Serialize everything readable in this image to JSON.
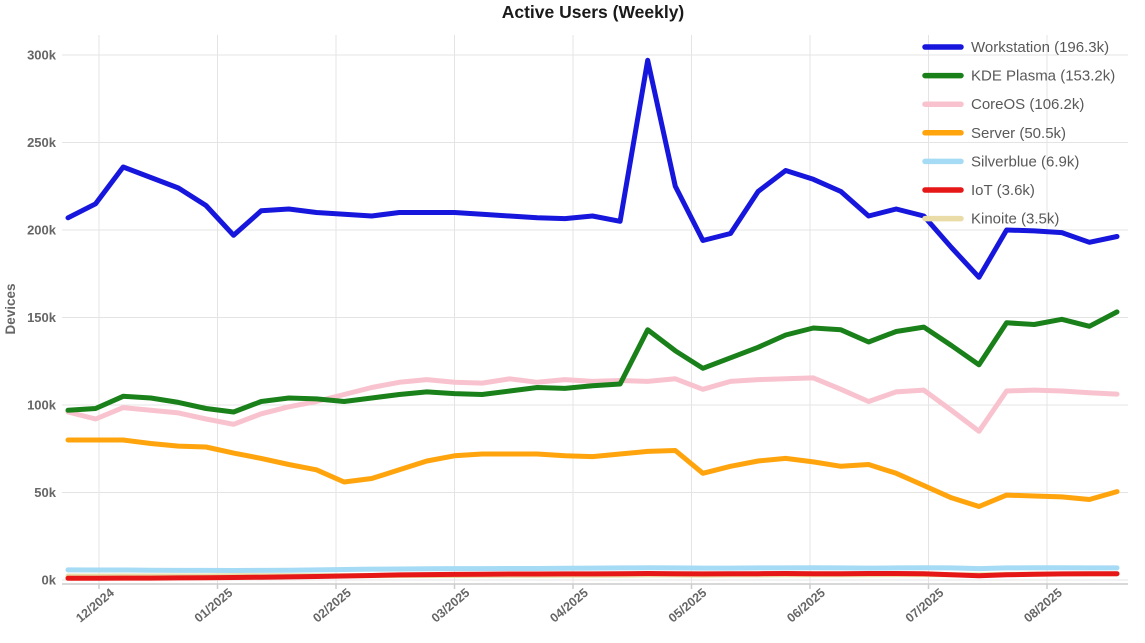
{
  "chart_data": {
    "type": "line",
    "title": "Active Users (Weekly)",
    "ylabel": "Devices",
    "xlabel": "",
    "grid": true,
    "legend_position": "top-right-inside",
    "ylim": [
      0,
      310
    ],
    "y_tick_values": [
      0,
      50,
      100,
      150,
      200,
      250,
      300
    ],
    "y_tick_labels": [
      "0k",
      "50k",
      "100k",
      "150k",
      "200k",
      "250k",
      "300k"
    ],
    "x_tick_labels": [
      "12/2024",
      "01/2025",
      "02/2025",
      "03/2025",
      "04/2025",
      "05/2025",
      "06/2025",
      "07/2025",
      "08/2025"
    ],
    "x_unit": "week",
    "n_points": 39,
    "series": [
      {
        "name": "Workstation",
        "legend": "Workstation (196.3k)",
        "latest": "196.3k",
        "color": "#1616dd",
        "values": [
          207,
          215,
          236,
          230,
          224,
          214,
          197,
          211,
          212,
          210,
          209,
          208,
          210,
          210,
          210,
          209,
          208,
          207,
          206.5,
          208,
          205,
          297,
          225,
          194,
          198,
          222,
          234,
          229,
          222,
          208,
          212,
          208,
          190,
          173,
          200,
          199.5,
          198.5,
          193,
          196.3
        ]
      },
      {
        "name": "KDE Plasma",
        "legend": "KDE Plasma (153.2k)",
        "latest": "153.2k",
        "color": "#1a801a",
        "values": [
          97,
          98,
          105,
          104,
          101.5,
          98,
          96,
          102,
          104,
          103.5,
          102,
          104,
          106,
          107.5,
          106.5,
          106,
          108,
          110,
          109.5,
          111,
          112,
          143,
          131,
          121,
          127,
          133,
          140,
          144,
          143,
          136,
          142,
          144.5,
          134,
          123,
          147,
          146,
          149,
          145,
          153.2
        ]
      },
      {
        "name": "CoreOS",
        "legend": "CoreOS (106.2k)",
        "latest": "106.2k",
        "color": "#f8c3ce",
        "values": [
          96,
          92,
          98.5,
          97,
          95.5,
          92,
          89,
          95,
          99,
          102,
          106,
          110,
          113,
          114.5,
          113,
          112.5,
          115,
          113,
          114.5,
          113.5,
          114,
          113.5,
          115,
          109,
          113.5,
          114.5,
          115,
          115.5,
          109,
          102,
          107.5,
          108.5,
          97,
          85,
          108,
          108.5,
          108,
          107,
          106.2
        ]
      },
      {
        "name": "Server",
        "legend": "Server (50.5k)",
        "latest": "50.5k",
        "color": "#ffa40d",
        "values": [
          80,
          80,
          80,
          78,
          76.5,
          76,
          72.5,
          69.5,
          66,
          63,
          56,
          58,
          63,
          68,
          71,
          72,
          72,
          72,
          71,
          70.5,
          72,
          73.5,
          74,
          61,
          65,
          68,
          69.5,
          67.5,
          65,
          66,
          61,
          54,
          47,
          42,
          48.5,
          48,
          47.5,
          46,
          50.5
        ]
      },
      {
        "name": "Silverblue",
        "legend": "Silverblue (6.9k)",
        "latest": "6.9k",
        "color": "#a6dbf5",
        "values": [
          5.8,
          5.7,
          5.7,
          5.6,
          5.5,
          5.5,
          5.4,
          5.5,
          5.6,
          5.8,
          6,
          6.2,
          6.3,
          6.4,
          6.5,
          6.5,
          6.6,
          6.6,
          6.7,
          6.8,
          6.9,
          7,
          6.9,
          6.8,
          6.8,
          6.9,
          6.9,
          7,
          6.9,
          6.8,
          6.9,
          7,
          6.9,
          6.5,
          6.9,
          7,
          7,
          6.9,
          6.9
        ]
      },
      {
        "name": "IoT",
        "legend": "IoT (3.6k)",
        "latest": "3.6k",
        "color": "#e51717",
        "values": [
          1,
          1,
          1.1,
          1.1,
          1.2,
          1.3,
          1.4,
          1.6,
          1.8,
          2,
          2.3,
          2.6,
          2.9,
          3.1,
          3.2,
          3.3,
          3.4,
          3.4,
          3.5,
          3.5,
          3.6,
          3.7,
          3.6,
          3.5,
          3.6,
          3.6,
          3.7,
          3.6,
          3.6,
          3.7,
          3.7,
          3.6,
          3,
          2.4,
          3,
          3.3,
          3.5,
          3.6,
          3.6
        ]
      },
      {
        "name": "Kinoite",
        "legend": "Kinoite (3.5k)",
        "latest": "3.5k",
        "color": "#e9dca6",
        "values": [
          2.2,
          2.2,
          2.3,
          2.3,
          2.3,
          2.3,
          2.4,
          2.4,
          2.4,
          2.5,
          2.5,
          2.5,
          2.6,
          2.6,
          2.6,
          2.7,
          2.7,
          2.7,
          2.8,
          2.8,
          2.8,
          2.9,
          2.9,
          2.8,
          2.9,
          2.9,
          3,
          3,
          3,
          3,
          3.1,
          3.1,
          3,
          2.9,
          3.2,
          3.3,
          3.4,
          3.4,
          3.5
        ]
      }
    ],
    "style": {
      "grid_color": "#e4e4e4",
      "axis_color": "#cccccc",
      "tick_text_color": "#666666",
      "legend_text_color": "#595959",
      "title_color": "#1a1a1a",
      "background": "#ffffff",
      "line_width": 5
    }
  }
}
